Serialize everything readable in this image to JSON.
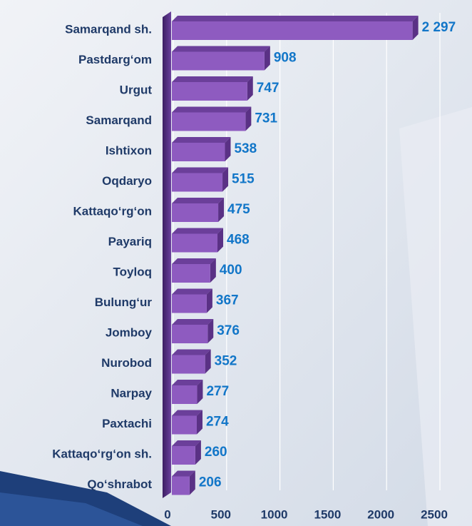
{
  "chart_data": {
    "type": "bar",
    "orientation": "horizontal",
    "categories": [
      "Samarqand sh.",
      "Pastdarg‘om",
      "Urgut",
      "Samarqand",
      "Ishtixon",
      "Oqdaryo",
      "Kattaqo‘rg‘on",
      "Payariq",
      "Toyloq",
      "Bulung‘ur",
      "Jomboy",
      "Nurobod",
      "Narpay",
      "Paxtachi",
      "Kattaqo‘rg‘on  sh.",
      "Qo‘shrabot"
    ],
    "values": [
      2297,
      908,
      747,
      731,
      538,
      515,
      475,
      468,
      400,
      367,
      376,
      352,
      277,
      274,
      260,
      206
    ],
    "value_labels": [
      "2 297",
      "908",
      "747",
      "731",
      "538",
      "515",
      "475",
      "468",
      "400",
      "367",
      "376",
      "352",
      "277",
      "274",
      "260",
      "206"
    ],
    "color": "#8e5bc0",
    "xlim": [
      0,
      2500
    ],
    "xticks": [
      0,
      500,
      1000,
      1500,
      2000,
      2500
    ],
    "grid": true
  }
}
